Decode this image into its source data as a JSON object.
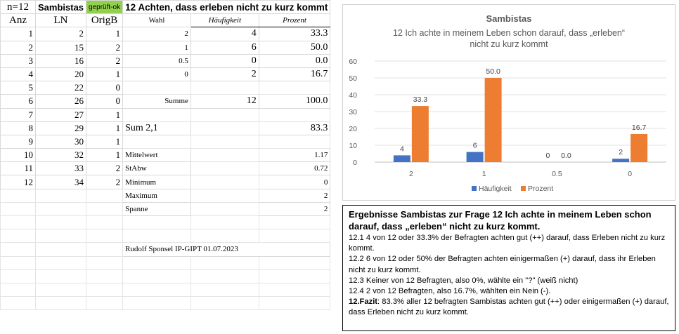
{
  "sheet": {
    "header": {
      "n": "n=12",
      "group": "Sambistas",
      "status": "geprüft-ok",
      "question": "12 Achten, dass erleben nicht zu kurz kommt"
    },
    "col_heads": {
      "anz": "Anz",
      "ln": "LN",
      "origb": "OrigB",
      "wahl": "Wahl",
      "haeufigkeit": "Häufigkeit",
      "prozent": "Prozent"
    },
    "rows": [
      {
        "anz": "1",
        "ln": "2",
        "origb": "1"
      },
      {
        "anz": "2",
        "ln": "15",
        "origb": "2"
      },
      {
        "anz": "3",
        "ln": "16",
        "origb": "2"
      },
      {
        "anz": "4",
        "ln": "20",
        "origb": "1"
      },
      {
        "anz": "5",
        "ln": "22",
        "origb": "0"
      },
      {
        "anz": "6",
        "ln": "26",
        "origb": "0"
      },
      {
        "anz": "7",
        "ln": "27",
        "origb": "1"
      },
      {
        "anz": "8",
        "ln": "29",
        "origb": "1"
      },
      {
        "anz": "9",
        "ln": "30",
        "origb": "1"
      },
      {
        "anz": "10",
        "ln": "32",
        "origb": "1"
      },
      {
        "anz": "11",
        "ln": "33",
        "origb": "2"
      },
      {
        "anz": "12",
        "ln": "34",
        "origb": "2"
      }
    ],
    "freq": [
      {
        "wahl": "2",
        "haeufigkeit": "4",
        "prozent": "33.3"
      },
      {
        "wahl": "1",
        "haeufigkeit": "6",
        "prozent": "50.0"
      },
      {
        "wahl": "0.5",
        "haeufigkeit": "0",
        "prozent": "0.0"
      },
      {
        "wahl": "0",
        "haeufigkeit": "2",
        "prozent": "16.7"
      }
    ],
    "summe": {
      "label": "Summe",
      "haeufigkeit": "12",
      "prozent": "100.0"
    },
    "sum21": {
      "label": "Sum 2,1",
      "prozent": "83.3"
    },
    "stats": [
      {
        "label": "Mittelwert",
        "value": "1.17"
      },
      {
        "label": "StAbw",
        "value": "0.72"
      },
      {
        "label": "Minimum",
        "value": "0"
      },
      {
        "label": "Maximum",
        "value": "2"
      },
      {
        "label": "Spanne",
        "value": "2"
      }
    ],
    "credit": "Rudolf Sponsel IP-GIPT 01.07.2023"
  },
  "chart_data": {
    "type": "bar",
    "title": "Sambistas",
    "subtitle": [
      "12 Ich achte in meinem Leben schon darauf,  dass „erleben“",
      "nicht zu kurz kommt"
    ],
    "categories": [
      "2",
      "1",
      "0.5",
      "0"
    ],
    "series": [
      {
        "name": "Häufigkeit",
        "values": [
          4,
          6,
          0,
          2
        ],
        "labels": [
          "4",
          "6",
          "0",
          "2"
        ],
        "color": "#4472c4"
      },
      {
        "name": "Prozent",
        "values": [
          33.3,
          50.0,
          0.0,
          16.7
        ],
        "labels": [
          "33.3",
          "50.0",
          "0.0",
          "16.7"
        ],
        "color": "#ed7d31"
      }
    ],
    "ylim": [
      0,
      60
    ],
    "yticks": [
      "0",
      "10",
      "20",
      "30",
      "40",
      "50",
      "60"
    ],
    "grid": true,
    "legend": "bottom"
  },
  "results": {
    "heading": "Ergebnisse  Sambistas zur Frage 12 Ich achte in meinem Leben schon darauf, dass „erleben“   nicht zu kurz kommt.",
    "items": [
      "12.1   4 von 12 oder 33.3% der Befragten achten gut (++) darauf, dass Erleben nicht zu kurz kommt.",
      "12.2   6 von 12 oder 50% der Befragten achten einigermaßen (+) darauf, dass ihr Erleben nicht zu kurz kommt.",
      "12.3  Keiner von 12 Befragten, also 0%, wählte ein \"?\" (weiß nicht)",
      "12.4  2 von 12 Befragten, also 16.7%, wählten ein Nein (-)."
    ],
    "fazit_label": "12.Fazit",
    "fazit_text": ": 83.3%  aller 12 befragten Sambistas achten gut (++) oder einigermaßen (+) darauf, dass Erleben nicht zu kurz kommt."
  }
}
